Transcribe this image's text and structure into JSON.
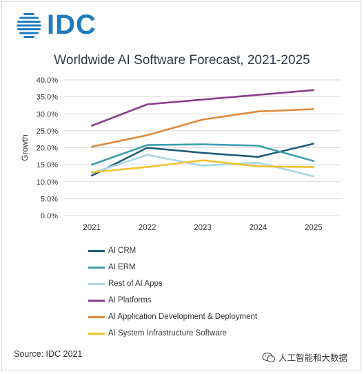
{
  "brand": {
    "logo_text": "IDC",
    "color": "#1f7bbd"
  },
  "source": "Source: IDC 2021",
  "watermark": "人工智能和大数据",
  "chart_data": {
    "type": "line",
    "title": "Worldwide AI Software Forecast, 2021-2025",
    "xlabel": "",
    "ylabel": "Growth",
    "x": [
      "2021",
      "2022",
      "2023",
      "2024",
      "2025"
    ],
    "ylim": [
      0,
      40
    ],
    "yticks": [
      "0.0%",
      "5.0%",
      "10.0%",
      "15.0%",
      "20.0%",
      "25.0%",
      "30.0%",
      "35.0%",
      "40.0%"
    ],
    "grid": true,
    "legend_position": "bottom",
    "series": [
      {
        "name": "AI CRM",
        "color": "#1f5d7a",
        "values": [
          11.8,
          20.0,
          18.5,
          17.3,
          21.2
        ]
      },
      {
        "name": "AI ERM",
        "color": "#3d9db1",
        "values": [
          15.0,
          20.8,
          21.0,
          20.6,
          16.1
        ]
      },
      {
        "name": "Rest of AI Apps",
        "color": "#a8d8e4",
        "values": [
          12.5,
          17.9,
          14.7,
          15.6,
          11.6
        ]
      },
      {
        "name": "AI Platforms",
        "color": "#8a3d8f",
        "values": [
          26.5,
          32.8,
          34.2,
          35.6,
          37.0
        ]
      },
      {
        "name": "AI Application Development & Deployment",
        "color": "#e08a3c",
        "values": [
          20.3,
          23.7,
          28.3,
          30.7,
          31.4
        ]
      },
      {
        "name": "AI System Infrastructure Software",
        "color": "#f2c12e",
        "values": [
          12.8,
          14.3,
          16.3,
          14.5,
          14.3
        ]
      }
    ]
  }
}
